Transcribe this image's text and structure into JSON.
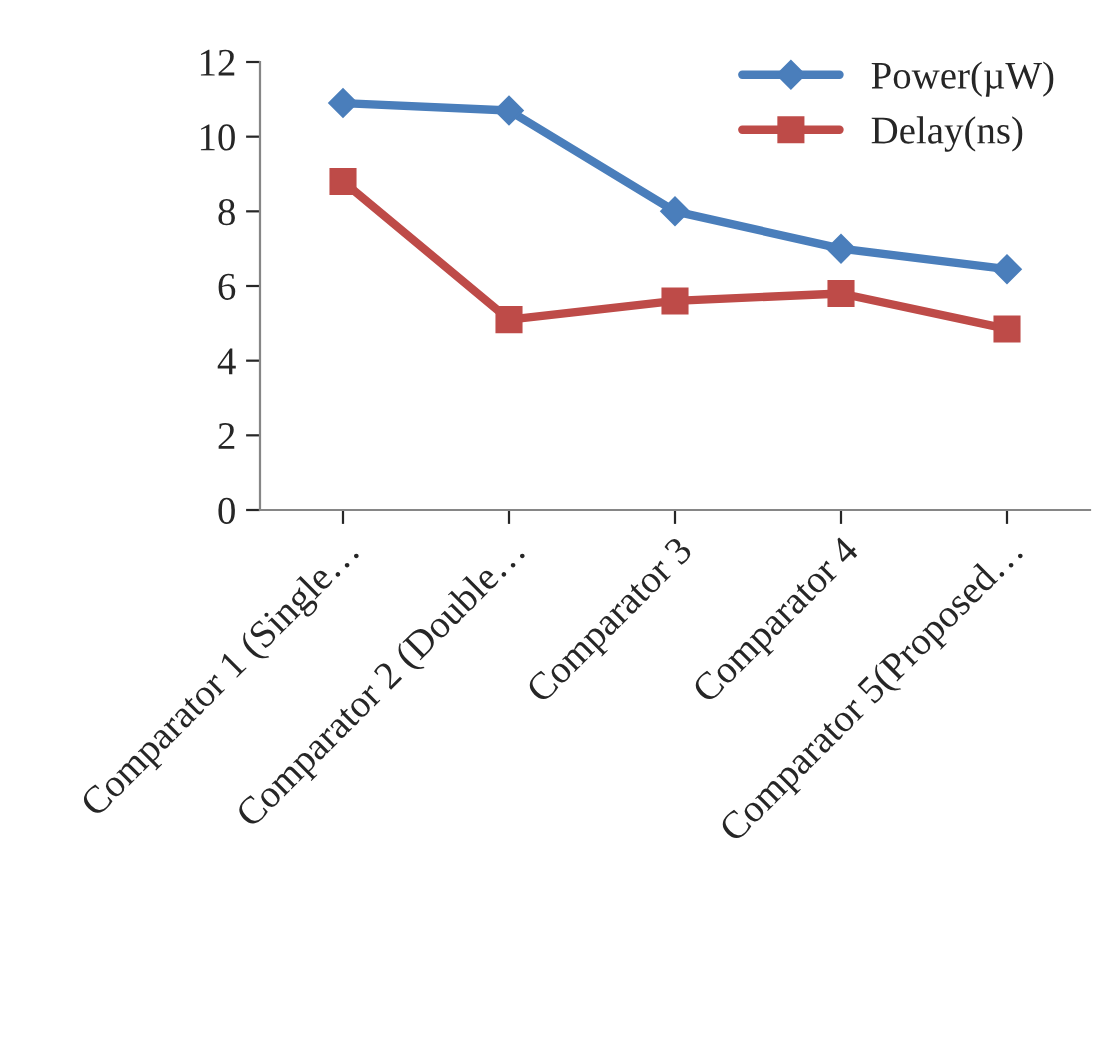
{
  "chart_data": {
    "type": "line",
    "categories": [
      "Comparator 1 (Single…",
      "Comparator 2 (Double…",
      "Comparator 3",
      "Comparator 4",
      "Comparator 5(Proposed…"
    ],
    "series": [
      {
        "name": "Power(µW)",
        "color": "#4a7ebb",
        "values": [
          10.9,
          10.7,
          8.0,
          7.0,
          6.45
        ],
        "marker": "diamond"
      },
      {
        "name": "Delay(ns)",
        "color": "#be4b48",
        "values": [
          8.8,
          5.1,
          5.6,
          5.8,
          4.85
        ],
        "marker": "square"
      }
    ],
    "ylim": [
      0,
      12
    ],
    "yticks": [
      0,
      2,
      4,
      6,
      8,
      10,
      12
    ],
    "grid": false,
    "legend": "top right",
    "line_style": "solid"
  }
}
